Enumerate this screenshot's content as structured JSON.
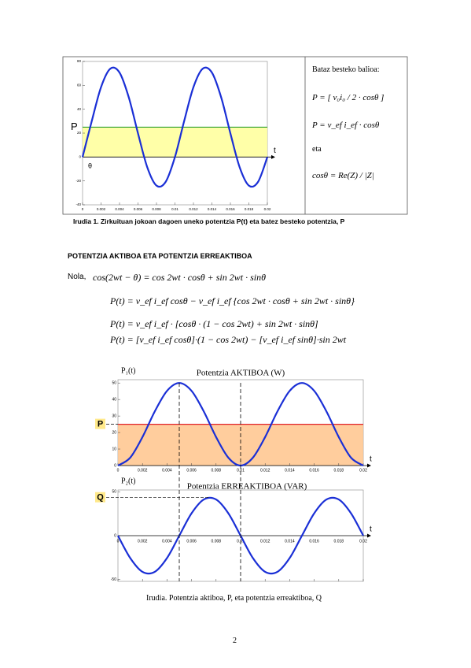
{
  "figure1": {
    "chart": {
      "type": "line",
      "x_label": "t",
      "level_label": "P",
      "theta_label": "θ",
      "level": 25,
      "xlim": [
        0,
        0.02
      ],
      "ylim": [
        -40,
        80
      ],
      "xticks": [
        0,
        0.002,
        0.004,
        0.006,
        0.008,
        0.01,
        0.012,
        0.014,
        0.016,
        0.018,
        0.02
      ],
      "yticks": [
        -40,
        -20,
        0,
        20,
        40,
        60,
        80
      ],
      "x": [
        0,
        0.001,
        0.002,
        0.003,
        0.004,
        0.005,
        0.006,
        0.007,
        0.008,
        0.009,
        0.01,
        0.011,
        0.012,
        0.013,
        0.014,
        0.015,
        0.016,
        0.017,
        0.018,
        0.019,
        0.02
      ],
      "series": [
        {
          "color": "#1a2fd6",
          "values": [
            0,
            30.2,
            58.5,
            73.9,
            70.7,
            50,
            19.8,
            -8.5,
            -23.9,
            -20.7,
            0,
            30.2,
            58.5,
            73.9,
            70.7,
            50,
            19.8,
            -8.5,
            -23.9,
            -20.7,
            0
          ]
        }
      ]
    },
    "side_panel": {
      "heading": "Bataz besteko balioa:",
      "formulas": [
        "P = [ v₀i₀ / 2 · cosθ ]",
        "P = v_ef i_ef · cosθ"
      ],
      "conjunction": "eta",
      "last_formula": "cosθ = Re(Z) / |Z|"
    },
    "caption": "Irudia 1. Zirkuituan jokoan dagoen uneko potentzia P(t) eta batez besteko potentzia, P"
  },
  "section": {
    "heading": "POTENTZIA AKTIBOA ETA POTENTZIA ERREAKTIBOA",
    "intro": "Nola,",
    "identity": "cos(2wt − θ) = cos 2wt · cosθ + sin 2wt · sinθ",
    "equations": [
      "P(t) = v_ef i_ef cosθ − v_ef i_ef {cos 2wt · cosθ + sin 2wt · sinθ}",
      "P(t) = v_ef i_ef · [cosθ · (1 − cos 2wt) + sin 2wt · sinθ]",
      "P(t) = [v_ef i_ef cosθ]·(1 − cos 2wt) − [v_ef i_ef sinθ]·sin 2wt"
    ]
  },
  "figure2": {
    "markers_x": [
      0.005,
      0.01
    ],
    "charts": [
      {
        "type": "line",
        "title": "Potentzia AKTIBOA (W)",
        "y_label": "P₁(t)",
        "x_label": "t",
        "level_label": "P",
        "level": 25,
        "xlim": [
          0,
          0.02
        ],
        "ylim": [
          0,
          52
        ],
        "xticks": [
          0,
          0.002,
          0.004,
          0.006,
          0.008,
          0.01,
          0.012,
          0.014,
          0.016,
          0.018,
          0.02
        ],
        "yticks": [
          0,
          10,
          20,
          30,
          40,
          50
        ],
        "x": [
          0,
          0.001,
          0.002,
          0.003,
          0.004,
          0.005,
          0.006,
          0.007,
          0.008,
          0.009,
          0.01,
          0.011,
          0.012,
          0.013,
          0.014,
          0.015,
          0.016,
          0.017,
          0.018,
          0.019,
          0.02
        ],
        "series": [
          {
            "color": "#1a2fd6",
            "values": [
              0,
              4.77,
              17.27,
              32.73,
              45.23,
              50,
              45.23,
              32.73,
              17.27,
              4.77,
              0,
              4.77,
              17.27,
              32.73,
              45.23,
              50,
              45.23,
              32.73,
              17.27,
              4.77,
              0
            ]
          }
        ]
      },
      {
        "type": "line",
        "title": "Potentzia ERREAKTIBOA (VAR)",
        "y_label": "P₂(t)",
        "x_label": "t",
        "level_label": "Q",
        "level": 43.3,
        "xtick_labels_at_zero": true,
        "xlim": [
          0,
          0.02
        ],
        "ylim": [
          -52,
          52
        ],
        "xticks": [
          0,
          0.002,
          0.004,
          0.006,
          0.008,
          0.01,
          0.012,
          0.014,
          0.016,
          0.018,
          0.02
        ],
        "yticks": [
          -50,
          0,
          50
        ],
        "x": [
          0,
          0.001,
          0.002,
          0.003,
          0.004,
          0.005,
          0.006,
          0.007,
          0.008,
          0.009,
          0.01,
          0.011,
          0.012,
          0.013,
          0.014,
          0.015,
          0.016,
          0.017,
          0.018,
          0.019,
          0.02
        ],
        "series": [
          {
            "color": "#1a2fd6",
            "values": [
              0,
              -25.45,
              -41.18,
              -41.18,
              -25.45,
              0,
              25.45,
              41.18,
              41.18,
              25.45,
              0,
              -25.45,
              -41.18,
              -41.18,
              -25.45,
              0,
              25.45,
              41.18,
              41.18,
              25.45,
              0
            ]
          }
        ]
      }
    ],
    "caption": "Irudia. Potentzia aktiboa, P, eta potentzia erreaktiboa, Q"
  },
  "page_number": "2"
}
